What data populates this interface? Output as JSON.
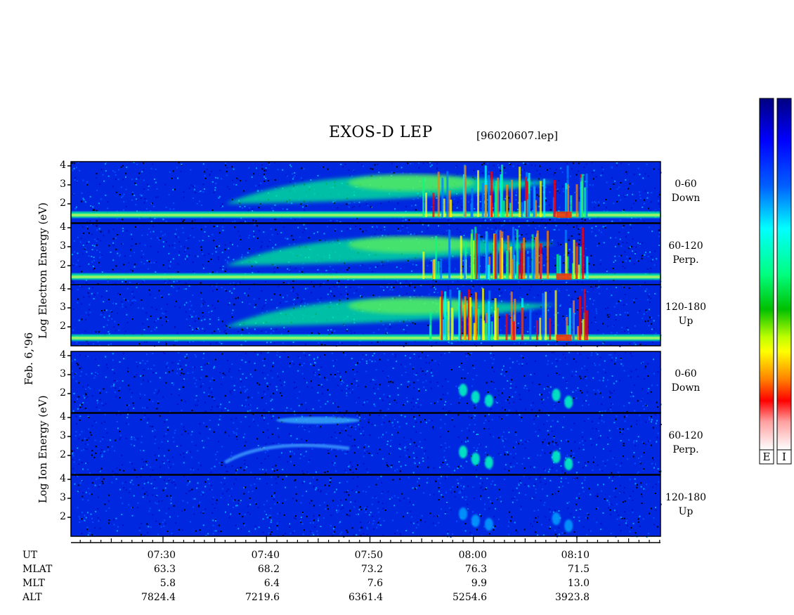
{
  "chart_data": {
    "type": "heatmap",
    "title": "EXOS-D LEP",
    "file_label": "[96020607.lep]",
    "date_label": "Feb. 6,'96",
    "panel_groups": [
      {
        "name": "Electron",
        "ylabel": "Log   Electron   Energy (eV)",
        "panels": [
          {
            "range": "0-60",
            "dir": "Down"
          },
          {
            "range": "60-120",
            "dir": "Perp."
          },
          {
            "range": "120-180",
            "dir": "Up"
          }
        ]
      },
      {
        "name": "Ion",
        "ylabel": "Log   Ion   Energy (eV)",
        "panels": [
          {
            "range": "0-60",
            "dir": "Down"
          },
          {
            "range": "60-120",
            "dir": "Perp."
          },
          {
            "range": "120-180",
            "dir": "Up"
          }
        ]
      }
    ],
    "y_ticks": [
      "4",
      "3",
      "2"
    ],
    "ylim": [
      1,
      4
    ],
    "x_row_labels": [
      "UT",
      "MLAT",
      "MLT",
      "ALT"
    ],
    "x_columns": [
      {
        "UT": "07:30",
        "MLAT": "63.3",
        "MLT": "5.8",
        "ALT": "7824.4"
      },
      {
        "UT": "07:40",
        "MLAT": "68.2",
        "MLT": "6.4",
        "ALT": "7219.6"
      },
      {
        "UT": "07:50",
        "MLAT": "73.2",
        "MLT": "7.6",
        "ALT": "6361.4"
      },
      {
        "UT": "08:00",
        "MLAT": "76.3",
        "MLT": "9.9",
        "ALT": "5254.6"
      },
      {
        "UT": "08:10",
        "MLAT": "71.5",
        "MLT": "13.0",
        "ALT": "3923.8"
      }
    ],
    "xlim_minutes": [
      "07:21",
      "08:18"
    ],
    "colorbar_labels": [
      "E",
      "I"
    ],
    "colorscale": [
      "#000080",
      "#0000ff",
      "#0080ff",
      "#00ffff",
      "#00ff80",
      "#00c000",
      "#ffff00",
      "#ff8000",
      "#ff0000",
      "#ffc0c0",
      "#ffffff"
    ]
  }
}
